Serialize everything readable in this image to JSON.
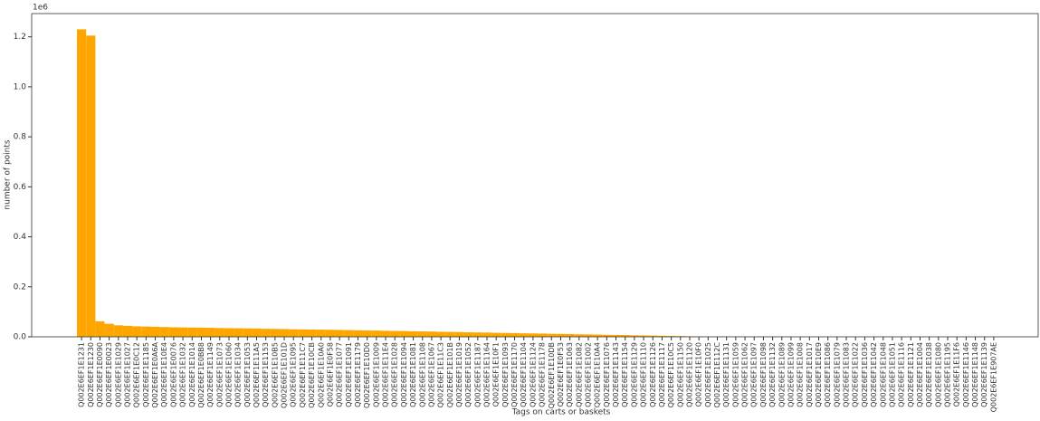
{
  "chart_data": {
    "type": "bar",
    "x_label": "Tags on carts or baskets",
    "y_label": "number of points",
    "y_offset_text": "1e6",
    "color": "#ffa500",
    "categories": [
      "Q002E6EF1E1231",
      "Q002E6EF1E1230",
      "Q002E6EF1E0090",
      "Q002E6EF1E0023",
      "Q002E6EF1E1029",
      "Q002E6EF1E1027",
      "Q002E6EF1E0C12",
      "Q002E6EF1E1185",
      "Q002E6EF1E0A6A",
      "Q002E6EF1E10E4",
      "Q002E6EF1E0076",
      "Q002E6EF1E1032",
      "Q002E6EF1E1014",
      "Q002E6EF1E0BB8",
      "Q002E6EF1E1149",
      "Q002E6EF1E1073",
      "Q002E6EF1E1060",
      "Q002E6EF1E1034",
      "Q002E6EF1E1053",
      "Q002E6EF1E11A5",
      "Q002E6EF1E1153",
      "Q002E6EF1E10B5",
      "Q002E6EF1E101D",
      "Q002E6EF1E1095",
      "Q002E6EF1E11C7",
      "Q002E6EF1E10CB",
      "Q002E6EF1E10A0",
      "Q002E6EF1E0F58",
      "Q002E6EF1E1077",
      "Q002E6EF1E1091",
      "Q002E6EF1E1179",
      "Q002E6EF1E10D0",
      "Q002E6EF1E1009",
      "Q002E6EF1E11E4",
      "Q002E6EF1E1028",
      "Q002E6EF1E1094",
      "Q002E6EF1E1081",
      "Q002E6EF1E1108",
      "Q002E6EF1E1067",
      "Q002E6EF1E11C3",
      "Q002E6EF1E101B",
      "Q002E6EF1E1019",
      "Q002E6EF1E1052",
      "Q002E6EF1E1187",
      "Q002E6EF1E1164",
      "Q002E6EF1E10F1",
      "Q002E6EF1E1093",
      "Q002E6EF1E1170",
      "Q002E6EF1E1104",
      "Q002E6EF1E1124",
      "Q002E6EF1E1178",
      "Q002E6EF1E10DB",
      "Q002E6EF1E0F53",
      "Q002E6EF1E1063",
      "Q002E6EF1E1082",
      "Q002E6EF1E1002",
      "Q002E6EF1E10A4",
      "Q002E6EF1E1076",
      "Q002E6EF1E1143",
      "Q002E6EF1E1154",
      "Q002E6EF1E1129",
      "Q002E6EF1E1110",
      "Q002E6EF1E1126",
      "Q002E6EF1E1117",
      "Q002E6EF1E10C5",
      "Q002E6EF1E1150",
      "Q002E6EF1E1120",
      "Q002E6EF1E10F0",
      "Q002E6EF1E1025",
      "Q002E6EF1E112C",
      "Q002E6EF1E1131",
      "Q002E6EF1E1059",
      "Q002E6EF1E1062",
      "Q002E6EF1E1097",
      "Q002E6EF1E1098",
      "Q002E6EF1E1132",
      "Q002E6EF1E1089",
      "Q002E6EF1E1099",
      "Q002E6EF1E1008",
      "Q002E6EF1E1017",
      "Q002E6EF1E10E9",
      "Q002E6EF1E1086",
      "Q002E6EF1E1079",
      "Q002E6EF1E1083",
      "Q002E6EF1E1022",
      "Q002E6EF1E1036",
      "Q002E6EF1E1042",
      "Q002E6EF1E1048",
      "Q002E6EF1E1051",
      "Q002E6EF1E1116",
      "Q002E6EF1E1121",
      "Q002E6EF1E1004",
      "Q002E6EF1E1038",
      "Q002E6EF1E1080",
      "Q002E6EF1E1195",
      "Q002E6EF1E11F6",
      "Q002E6EF1E1146",
      "Q002E6EF1E1148",
      "Q002E6EF1E1139",
      "Q002E6EF1E907AE"
    ],
    "values": [
      1230000,
      1205000,
      62000,
      52000,
      46000,
      44000,
      42000,
      41000,
      40000,
      39000,
      38000,
      37500,
      37000,
      36500,
      36000,
      35000,
      34500,
      34000,
      33500,
      33000,
      32000,
      31500,
      31000,
      30000,
      29500,
      29000,
      28500,
      28000,
      27500,
      27000,
      26000,
      25500,
      25000,
      24000,
      23500,
      23000,
      22000,
      21500,
      21000,
      20000,
      19500,
      19000,
      18000,
      17500,
      17000,
      16000,
      15500,
      15000,
      14000,
      13500,
      13000,
      12000,
      11500,
      11000,
      10000,
      9500,
      9000,
      8000,
      7500,
      7000,
      6000,
      5500,
      5000,
      4000,
      3500,
      3000,
      2000,
      1500,
      1000,
      800,
      600,
      500,
      500,
      400,
      400,
      400,
      300,
      300,
      300,
      300,
      200,
      200,
      200,
      200,
      200,
      150,
      150,
      150,
      100,
      100,
      100,
      100,
      80,
      80,
      60,
      60,
      50,
      40,
      30,
      20
    ],
    "ylim": [
      0,
      1293000
    ],
    "yticks": [
      {
        "value": 0,
        "label": "0.0"
      },
      {
        "value": 200000,
        "label": "0.2"
      },
      {
        "value": 400000,
        "label": "0.4"
      },
      {
        "value": 600000,
        "label": "0.6"
      },
      {
        "value": 800000,
        "label": "0.8"
      },
      {
        "value": 1000000,
        "label": "1.0"
      },
      {
        "value": 1200000,
        "label": "1.2"
      }
    ]
  }
}
